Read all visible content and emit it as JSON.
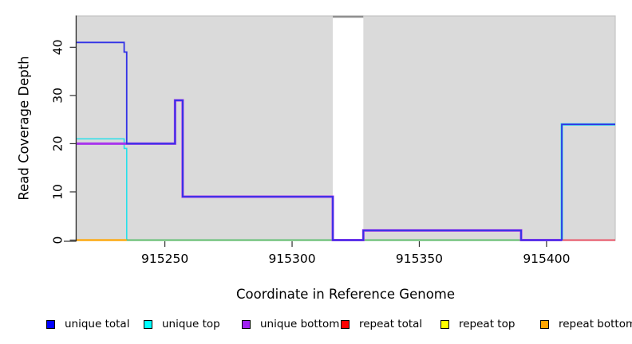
{
  "figure": {
    "xlabel": "Coordinate in Reference Genome",
    "ylabel": "Read Coverage Depth"
  },
  "legend": {
    "items": [
      {
        "label": "unique total",
        "color": "#0000FF"
      },
      {
        "label": "unique top",
        "color": "#00FFFF"
      },
      {
        "label": "unique bottom",
        "color": "#A020F0"
      },
      {
        "label": "repeat total",
        "color": "#FF0000"
      },
      {
        "label": "repeat top",
        "color": "#FFFF00"
      },
      {
        "label": "repeat bottom",
        "color": "#FFA500"
      }
    ]
  },
  "chart_data": {
    "type": "line",
    "title": "",
    "xlabel": "Coordinate in Reference Genome",
    "ylabel": "Read Coverage Depth",
    "xlim": [
      915215,
      915427
    ],
    "ylim": [
      0,
      46.5
    ],
    "x_ticks": [
      915250,
      915300,
      915350,
      915400
    ],
    "y_ticks": [
      0,
      10,
      20,
      30,
      40
    ],
    "grid": false,
    "legend_position": "bottom",
    "plot_background": "#DADADA",
    "plot_border_color": "#C4C4C4",
    "gap_region": {
      "x_start": 915316,
      "x_end": 915328,
      "fill": "#FFFFFF",
      "top_edge_color": "#8F8F8F"
    },
    "series": [
      {
        "name": "unique total",
        "color": "#3232E6",
        "segments": [
          [
            915215,
            915234,
            41
          ],
          [
            915234,
            915235,
            39
          ],
          [
            915235,
            915254,
            20
          ],
          [
            915254,
            915257,
            29
          ],
          [
            915257,
            915316,
            9
          ],
          [
            915316,
            915328,
            0
          ],
          [
            915328,
            915390,
            2
          ],
          [
            915390,
            915406,
            0
          ],
          [
            915406,
            915427,
            24
          ]
        ]
      },
      {
        "name": "unique top",
        "color": "#26E0EA",
        "segments": [
          [
            915215,
            915234,
            21
          ],
          [
            915234,
            915235,
            19
          ],
          [
            915235,
            915406,
            0
          ],
          [
            915406,
            915427,
            24
          ]
        ]
      },
      {
        "name": "unique bottom",
        "color": "#A835EC",
        "segments": [
          [
            915215,
            915254,
            20
          ],
          [
            915254,
            915257,
            29
          ],
          [
            915257,
            915316,
            9
          ],
          [
            915316,
            915328,
            0
          ],
          [
            915328,
            915390,
            2
          ],
          [
            915390,
            915406,
            0
          ]
        ]
      },
      {
        "name": "repeat total",
        "color": "#EC4257",
        "segments": [
          [
            915406,
            915427,
            0
          ]
        ]
      },
      {
        "name": "repeat top",
        "color": "#FFEB00",
        "segments": [
          [
            915215,
            915235,
            0
          ]
        ]
      },
      {
        "name": "repeat bottom",
        "color": "#FFA500",
        "segments": [
          [
            915215,
            915235,
            0
          ]
        ]
      },
      {
        "name": "unlabeled green baseline",
        "color": "#5CBA60",
        "segments": [
          [
            915235,
            915406,
            0
          ]
        ]
      }
    ]
  }
}
